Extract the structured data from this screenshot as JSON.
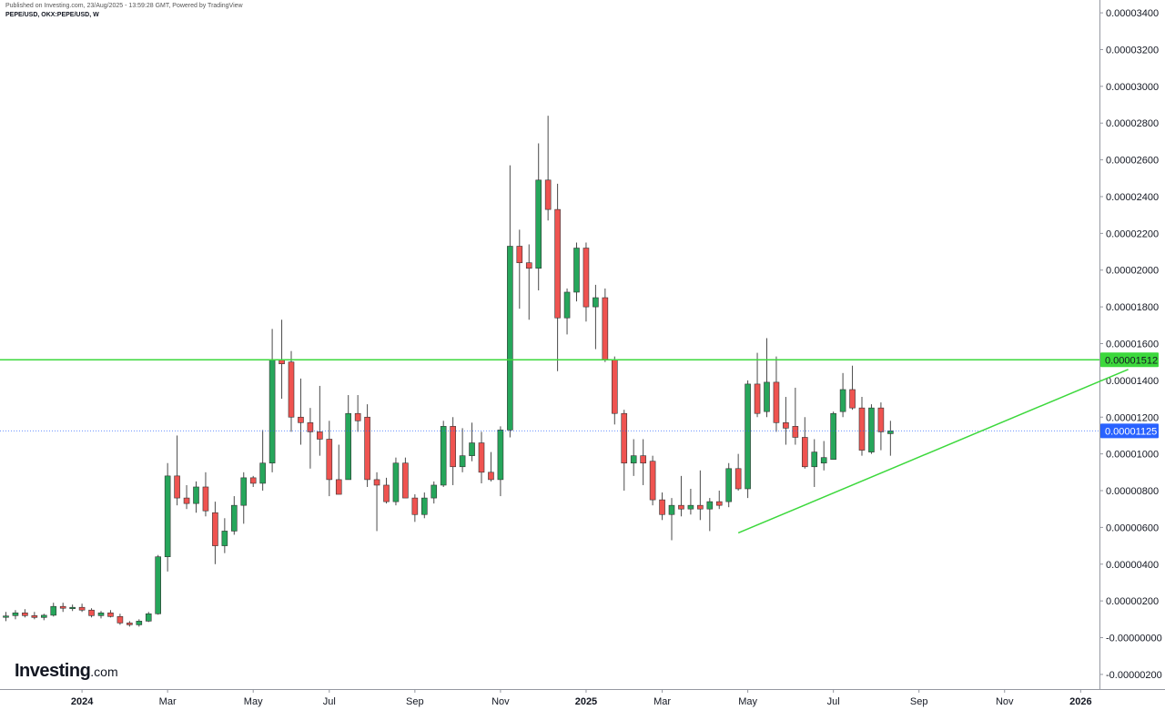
{
  "header": {
    "published": "Published on Investing.com, 23/Aug/2025 - 13:59:28 GMT, Powered by TradingView",
    "symbol": "PEPE/USD, OKX:PEPE/USD, W"
  },
  "logo": {
    "main": "Investing",
    "suffix": ".com"
  },
  "colors": {
    "up": "#26a65b",
    "down": "#ef5350",
    "wick": "#4a4a4a",
    "level": "#3cd83c",
    "current": "#2962ff"
  },
  "chart_data": {
    "type": "candlestick",
    "timeframe": "W",
    "ylim": [
      -2.5e-06,
      3.45e-05
    ],
    "y_ticks": [
      "0.00003400",
      "0.00003200",
      "0.00003000",
      "0.00002800",
      "0.00002600",
      "0.00002400",
      "0.00002200",
      "0.00002000",
      "0.00001800",
      "0.00001600",
      "0.00001400",
      "0.00001200",
      "0.00001000",
      "0.00000800",
      "0.00000600",
      "0.00000400",
      "0.00000200",
      "-0.00000000",
      "-0.00000200"
    ],
    "y_tick_values": [
      3.4e-05,
      3.2e-05,
      3e-05,
      2.8e-05,
      2.6e-05,
      2.4e-05,
      2.2e-05,
      2e-05,
      1.8e-05,
      1.6e-05,
      1.4e-05,
      1.2e-05,
      1e-05,
      8e-06,
      6e-06,
      4e-06,
      2e-06,
      0,
      -2e-06
    ],
    "x_ticks": [
      {
        "label": "2024",
        "week": 8,
        "bold": true
      },
      {
        "label": "Mar",
        "week": 17,
        "bold": false
      },
      {
        "label": "May",
        "week": 26,
        "bold": false
      },
      {
        "label": "Jul",
        "week": 34,
        "bold": false
      },
      {
        "label": "Sep",
        "week": 43,
        "bold": false
      },
      {
        "label": "Nov",
        "week": 52,
        "bold": false
      },
      {
        "label": "2025",
        "week": 61,
        "bold": true
      },
      {
        "label": "Mar",
        "week": 69,
        "bold": false
      },
      {
        "label": "May",
        "week": 78,
        "bold": false
      },
      {
        "label": "Jul",
        "week": 87,
        "bold": false
      },
      {
        "label": "Sep",
        "week": 96,
        "bold": false
      },
      {
        "label": "Nov",
        "week": 105,
        "bold": false
      },
      {
        "label": "2026",
        "week": 113,
        "bold": true
      }
    ],
    "candles": [
      {
        "o": 1.14e-06,
        "h": 1.4e-06,
        "l": 9e-07,
        "c": 1.18e-06
      },
      {
        "o": 1.2e-06,
        "h": 1.5e-06,
        "l": 1e-06,
        "c": 1.35e-06
      },
      {
        "o": 1.35e-06,
        "h": 1.55e-06,
        "l": 1.1e-06,
        "c": 1.2e-06
      },
      {
        "o": 1.2e-06,
        "h": 1.4e-06,
        "l": 1e-06,
        "c": 1.1e-06
      },
      {
        "o": 1.1e-06,
        "h": 1.3e-06,
        "l": 9.5e-07,
        "c": 1.22e-06
      },
      {
        "o": 1.22e-06,
        "h": 1.9e-06,
        "l": 1.15e-06,
        "c": 1.7e-06
      },
      {
        "o": 1.7e-06,
        "h": 1.9e-06,
        "l": 1.4e-06,
        "c": 1.6e-06
      },
      {
        "o": 1.6e-06,
        "h": 1.8e-06,
        "l": 1.45e-06,
        "c": 1.65e-06
      },
      {
        "o": 1.65e-06,
        "h": 1.85e-06,
        "l": 1.4e-06,
        "c": 1.5e-06
      },
      {
        "o": 1.5e-06,
        "h": 1.6e-06,
        "l": 1.1e-06,
        "c": 1.2e-06
      },
      {
        "o": 1.2e-06,
        "h": 1.45e-06,
        "l": 1.05e-06,
        "c": 1.35e-06
      },
      {
        "o": 1.35e-06,
        "h": 1.5e-06,
        "l": 1.1e-06,
        "c": 1.15e-06
      },
      {
        "o": 1.15e-06,
        "h": 1.3e-06,
        "l": 7e-07,
        "c": 8e-07
      },
      {
        "o": 8e-07,
        "h": 9e-07,
        "l": 6e-07,
        "c": 7e-07
      },
      {
        "o": 7e-07,
        "h": 1e-06,
        "l": 6e-07,
        "c": 9e-07
      },
      {
        "o": 9e-07,
        "h": 1.4e-06,
        "l": 8.5e-07,
        "c": 1.3e-06
      },
      {
        "o": 1.3e-06,
        "h": 4.5e-06,
        "l": 1.25e-06,
        "c": 4.4e-06
      },
      {
        "o": 4.4e-06,
        "h": 9.5e-06,
        "l": 3.6e-06,
        "c": 8.8e-06
      },
      {
        "o": 8.8e-06,
        "h": 1.1e-05,
        "l": 7.2e-06,
        "c": 7.6e-06
      },
      {
        "o": 7.6e-06,
        "h": 8.3e-06,
        "l": 7e-06,
        "c": 7.3e-06
      },
      {
        "o": 7.3e-06,
        "h": 8.5e-06,
        "l": 6.8e-06,
        "c": 8.2e-06
      },
      {
        "o": 8.2e-06,
        "h": 9e-06,
        "l": 6.6e-06,
        "c": 6.9e-06
      },
      {
        "o": 6.8e-06,
        "h": 7.4e-06,
        "l": 4e-06,
        "c": 5e-06
      },
      {
        "o": 5e-06,
        "h": 6.5e-06,
        "l": 4.6e-06,
        "c": 5.8e-06
      },
      {
        "o": 5.8e-06,
        "h": 7.7e-06,
        "l": 5.6e-06,
        "c": 7.2e-06
      },
      {
        "o": 7.2e-06,
        "h": 9e-06,
        "l": 6.2e-06,
        "c": 8.7e-06
      },
      {
        "o": 8.7e-06,
        "h": 8.8e-06,
        "l": 8.2e-06,
        "c": 8.4e-06
      },
      {
        "o": 8.4e-06,
        "h": 1.13e-05,
        "l": 8e-06,
        "c": 9.5e-06
      },
      {
        "o": 9.5e-06,
        "h": 1.68e-05,
        "l": 9e-06,
        "c": 1.51e-05
      },
      {
        "o": 1.51e-05,
        "h": 1.73e-05,
        "l": 1.3e-05,
        "c": 1.49e-05
      },
      {
        "o": 1.5e-05,
        "h": 1.56e-05,
        "l": 1.12e-05,
        "c": 1.2e-05
      },
      {
        "o": 1.2e-05,
        "h": 1.41e-05,
        "l": 1.05e-05,
        "c": 1.17e-05
      },
      {
        "o": 1.17e-05,
        "h": 1.25e-05,
        "l": 9.2e-06,
        "c": 1.12e-05
      },
      {
        "o": 1.12e-05,
        "h": 1.37e-05,
        "l": 9.9e-06,
        "c": 1.08e-05
      },
      {
        "o": 1.08e-05,
        "h": 1.18e-05,
        "l": 7.7e-06,
        "c": 8.6e-06
      },
      {
        "o": 8.6e-06,
        "h": 1.05e-05,
        "l": 7.8e-06,
        "c": 7.8e-06
      },
      {
        "o": 8.6e-06,
        "h": 1.32e-05,
        "l": 8.6e-06,
        "c": 1.22e-05
      },
      {
        "o": 1.22e-05,
        "h": 1.32e-05,
        "l": 1.12e-05,
        "c": 1.18e-05
      },
      {
        "o": 1.2e-05,
        "h": 1.27e-05,
        "l": 8.2e-06,
        "c": 8.6e-06
      },
      {
        "o": 8.6e-06,
        "h": 9e-06,
        "l": 5.8e-06,
        "c": 8.3e-06
      },
      {
        "o": 8.3e-06,
        "h": 8.7e-06,
        "l": 7.3e-06,
        "c": 7.4e-06
      },
      {
        "o": 7.4e-06,
        "h": 9.8e-06,
        "l": 7.2e-06,
        "c": 9.5e-06
      },
      {
        "o": 9.5e-06,
        "h": 9.8e-06,
        "l": 7.6e-06,
        "c": 7.6e-06
      },
      {
        "o": 7.6e-06,
        "h": 7.8e-06,
        "l": 6.3e-06,
        "c": 6.7e-06
      },
      {
        "o": 6.7e-06,
        "h": 7.9e-06,
        "l": 6.5e-06,
        "c": 7.6e-06
      },
      {
        "o": 7.6e-06,
        "h": 8.5e-06,
        "l": 7.3e-06,
        "c": 8.3e-06
      },
      {
        "o": 8.3e-06,
        "h": 1.18e-05,
        "l": 8.2e-06,
        "c": 1.15e-05
      },
      {
        "o": 1.15e-05,
        "h": 1.2e-05,
        "l": 8.3e-06,
        "c": 9.3e-06
      },
      {
        "o": 9.3e-06,
        "h": 1.14e-05,
        "l": 9e-06,
        "c": 9.9e-06
      },
      {
        "o": 9.9e-06,
        "h": 1.17e-05,
        "l": 9.6e-06,
        "c": 1.06e-05
      },
      {
        "o": 1.06e-05,
        "h": 1.12e-05,
        "l": 8.4e-06,
        "c": 9e-06
      },
      {
        "o": 9e-06,
        "h": 1.01e-05,
        "l": 8.5e-06,
        "c": 8.6e-06
      },
      {
        "o": 8.6e-06,
        "h": 1.15e-05,
        "l": 7.7e-06,
        "c": 1.13e-05
      },
      {
        "o": 1.13e-05,
        "h": 2.57e-05,
        "l": 1.09e-05,
        "c": 2.13e-05
      },
      {
        "o": 2.13e-05,
        "h": 2.22e-05,
        "l": 1.79e-05,
        "c": 2.04e-05
      },
      {
        "o": 2.04e-05,
        "h": 2.14e-05,
        "l": 1.73e-05,
        "c": 2.01e-05
      },
      {
        "o": 2.01e-05,
        "h": 2.69e-05,
        "l": 1.89e-05,
        "c": 2.49e-05
      },
      {
        "o": 2.49e-05,
        "h": 2.84e-05,
        "l": 2.27e-05,
        "c": 2.33e-05
      },
      {
        "o": 2.33e-05,
        "h": 2.47e-05,
        "l": 1.45e-05,
        "c": 1.74e-05
      },
      {
        "o": 1.74e-05,
        "h": 1.9e-05,
        "l": 1.65e-05,
        "c": 1.88e-05
      },
      {
        "o": 1.88e-05,
        "h": 2.15e-05,
        "l": 1.83e-05,
        "c": 2.12e-05
      },
      {
        "o": 2.12e-05,
        "h": 2.15e-05,
        "l": 1.72e-05,
        "c": 1.8e-05
      },
      {
        "o": 1.8e-05,
        "h": 1.92e-05,
        "l": 1.57e-05,
        "c": 1.85e-05
      },
      {
        "o": 1.85e-05,
        "h": 1.9e-05,
        "l": 1.5e-05,
        "c": 1.51e-05
      },
      {
        "o": 1.51e-05,
        "h": 1.53e-05,
        "l": 1.16e-05,
        "c": 1.22e-05
      },
      {
        "o": 1.22e-05,
        "h": 1.24e-05,
        "l": 8e-06,
        "c": 9.5e-06
      },
      {
        "o": 9.5e-06,
        "h": 1.08e-05,
        "l": 8.8e-06,
        "c": 9.9e-06
      },
      {
        "o": 9.9e-06,
        "h": 1.08e-05,
        "l": 8.3e-06,
        "c": 9.5e-06
      },
      {
        "o": 9.6e-06,
        "h": 9.9e-06,
        "l": 7.2e-06,
        "c": 7.5e-06
      },
      {
        "o": 7.5e-06,
        "h": 7.9e-06,
        "l": 6.4e-06,
        "c": 6.7e-06
      },
      {
        "o": 6.7e-06,
        "h": 7.6e-06,
        "l": 5.3e-06,
        "c": 7.2e-06
      },
      {
        "o": 7.2e-06,
        "h": 8.8e-06,
        "l": 6.6e-06,
        "c": 7e-06
      },
      {
        "o": 7e-06,
        "h": 8.1e-06,
        "l": 6.7e-06,
        "c": 7.2e-06
      },
      {
        "o": 7.2e-06,
        "h": 9.1e-06,
        "l": 6.4e-06,
        "c": 7e-06
      },
      {
        "o": 7e-06,
        "h": 7.6e-06,
        "l": 5.8e-06,
        "c": 7.4e-06
      },
      {
        "o": 7.4e-06,
        "h": 8e-06,
        "l": 7e-06,
        "c": 7.2e-06
      },
      {
        "o": 7.4e-06,
        "h": 9.5e-06,
        "l": 7.1e-06,
        "c": 9.2e-06
      },
      {
        "o": 9.2e-06,
        "h": 1e-05,
        "l": 8e-06,
        "c": 8.1e-06
      },
      {
        "o": 8.1e-06,
        "h": 1.4e-05,
        "l": 7.6e-06,
        "c": 1.38e-05
      },
      {
        "o": 1.38e-05,
        "h": 1.55e-05,
        "l": 1.2e-05,
        "c": 1.22e-05
      },
      {
        "o": 1.23e-05,
        "h": 1.63e-05,
        "l": 1.2e-05,
        "c": 1.39e-05
      },
      {
        "o": 1.39e-05,
        "h": 1.53e-05,
        "l": 1.12e-05,
        "c": 1.17e-05
      },
      {
        "o": 1.17e-05,
        "h": 1.31e-05,
        "l": 1.05e-05,
        "c": 1.14e-05
      },
      {
        "o": 1.15e-05,
        "h": 1.36e-05,
        "l": 1.05e-05,
        "c": 1.09e-05
      },
      {
        "o": 1.09e-05,
        "h": 1.2e-05,
        "l": 9.2e-06,
        "c": 9.3e-06
      },
      {
        "o": 9.3e-06,
        "h": 1.08e-05,
        "l": 8.2e-06,
        "c": 1.01e-05
      },
      {
        "o": 9.5e-06,
        "h": 1.07e-05,
        "l": 9.1e-06,
        "c": 9.8e-06
      },
      {
        "o": 9.7e-06,
        "h": 1.23e-05,
        "l": 9.7e-06,
        "c": 1.22e-05
      },
      {
        "o": 1.23e-05,
        "h": 1.44e-05,
        "l": 1.2e-05,
        "c": 1.35e-05
      },
      {
        "o": 1.35e-05,
        "h": 1.48e-05,
        "l": 1.24e-05,
        "c": 1.25e-05
      },
      {
        "o": 1.25e-05,
        "h": 1.31e-05,
        "l": 9.9e-06,
        "c": 1.02e-05
      },
      {
        "o": 1.01e-05,
        "h": 1.27e-05,
        "l": 1e-05,
        "c": 1.25e-05
      },
      {
        "o": 1.25e-05,
        "h": 1.28e-05,
        "l": 1.02e-05,
        "c": 1.12e-05
      },
      {
        "o": 1.11e-05,
        "h": 1.18e-05,
        "l": 9.9e-06,
        "c": 1.125e-05
      }
    ],
    "levels": [
      {
        "name": "resistance",
        "value": 1.512e-05,
        "label": "0.00001512"
      },
      {
        "name": "current-price",
        "value": 1.125e-05,
        "label": "0.00001125"
      }
    ],
    "trendline": {
      "start": {
        "week": 77,
        "value": 5.7e-06
      },
      "end": {
        "week": 118,
        "value": 1.46e-05
      }
    }
  }
}
